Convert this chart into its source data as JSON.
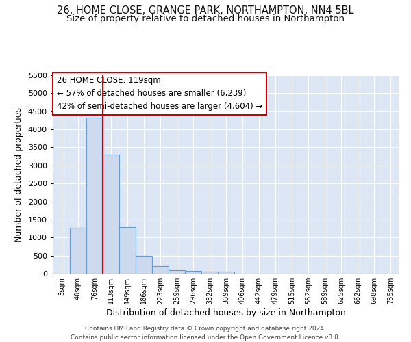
{
  "title1": "26, HOME CLOSE, GRANGE PARK, NORTHAMPTON, NN4 5BL",
  "title2": "Size of property relative to detached houses in Northampton",
  "xlabel": "Distribution of detached houses by size in Northampton",
  "ylabel": "Number of detached properties",
  "footnote": "Contains HM Land Registry data © Crown copyright and database right 2024.\nContains public sector information licensed under the Open Government Licence v3.0.",
  "bar_labels": [
    "3sqm",
    "40sqm",
    "76sqm",
    "113sqm",
    "149sqm",
    "186sqm",
    "223sqm",
    "259sqm",
    "296sqm",
    "332sqm",
    "369sqm",
    "406sqm",
    "442sqm",
    "479sqm",
    "515sqm",
    "552sqm",
    "589sqm",
    "625sqm",
    "662sqm",
    "698sqm",
    "735sqm"
  ],
  "bar_values": [
    0,
    1270,
    4330,
    3300,
    1290,
    490,
    215,
    90,
    75,
    55,
    55,
    0,
    0,
    0,
    0,
    0,
    0,
    0,
    0,
    0,
    0
  ],
  "bar_color": "#ccd9ee",
  "bar_edge_color": "#6699cc",
  "red_line_index": 3,
  "annotation_line1": "26 HOME CLOSE: 119sqm",
  "annotation_line2": "← 57% of detached houses are smaller (6,239)",
  "annotation_line3": "42% of semi-detached houses are larger (4,604) →",
  "ylim_max": 5500,
  "yticks": [
    0,
    500,
    1000,
    1500,
    2000,
    2500,
    3000,
    3500,
    4000,
    4500,
    5000,
    5500
  ],
  "red_line_color": "#cc0000",
  "bg_color": "#dce6f5",
  "fig_bg_color": "#ffffff",
  "title_fontsize": 10.5,
  "subtitle_fontsize": 9.5,
  "annotation_fontsize": 8.5,
  "ylabel_fontsize": 9,
  "xlabel_fontsize": 9
}
